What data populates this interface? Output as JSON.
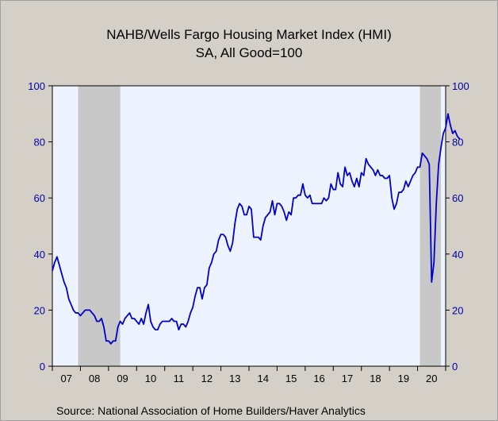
{
  "chart_data": {
    "type": "line",
    "title": "NAHB/Wells Fargo Housing Market Index (HMI)",
    "subtitle": "SA, All Good=100",
    "source": "Source:  National Association of Home Builders/Haver Analytics",
    "ylim": [
      0,
      100
    ],
    "y_ticks": [
      "0",
      "20",
      "40",
      "60",
      "80",
      "100"
    ],
    "right_axis": true,
    "x_tick_labels": [
      "07",
      "08",
      "09",
      "10",
      "11",
      "12",
      "13",
      "14",
      "15",
      "16",
      "17",
      "18",
      "19",
      "20"
    ],
    "x_start_year": 2007.0,
    "x_end_year": 2021.0,
    "recessions": [
      [
        2007.917,
        2009.417
      ],
      [
        2020.083,
        2020.833
      ]
    ],
    "series_color": "#0000cc",
    "plot_bg": "#eef4ff",
    "recession_color": "#c8c8c8",
    "series": [
      {
        "values": [
          34,
          37,
          39,
          36,
          33,
          30,
          28,
          24,
          22,
          20,
          19,
          19,
          18,
          19,
          20,
          20,
          20,
          19,
          18,
          16,
          16,
          17,
          14,
          9,
          9,
          8,
          9,
          9,
          14,
          16,
          15,
          17,
          18,
          19,
          17,
          17,
          16,
          15,
          17,
          15,
          19,
          22,
          16,
          14,
          13,
          13,
          15,
          16,
          16,
          16,
          16,
          17,
          16,
          16,
          13,
          15,
          15,
          14,
          16,
          19,
          21,
          25,
          28,
          28,
          24,
          28,
          29,
          35,
          37,
          40,
          41,
          45,
          47,
          47,
          46,
          43,
          41,
          44,
          51,
          56,
          58,
          57,
          54,
          54,
          57,
          56,
          46,
          46,
          46,
          45,
          50,
          53,
          54,
          55,
          59,
          54,
          58,
          58,
          57,
          55,
          52,
          55,
          54,
          60,
          60,
          61,
          61,
          65,
          61,
          60,
          61,
          58,
          58,
          58,
          58,
          58,
          60,
          59,
          60,
          65,
          63,
          63,
          69,
          65,
          64,
          71,
          68,
          69,
          66,
          64,
          67,
          64,
          69,
          68,
          74,
          72,
          71,
          70,
          68,
          70,
          68,
          68,
          67,
          67,
          68,
          60,
          56,
          58,
          62,
          62,
          63,
          66,
          64,
          66,
          68,
          69,
          71,
          71,
          76,
          75,
          74,
          72,
          30,
          37,
          58,
          72,
          78,
          83,
          85,
          90,
          86,
          83,
          84,
          82,
          81
        ]
      }
    ]
  }
}
